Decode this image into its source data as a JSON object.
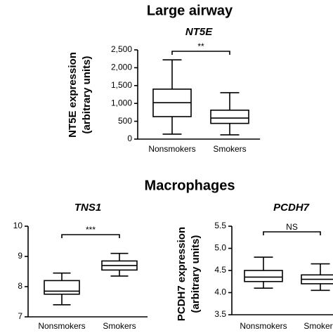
{
  "sections": [
    {
      "title": "Large airway"
    },
    {
      "title": "Macrophages"
    }
  ],
  "chart_data": [
    {
      "type": "box",
      "title": "NT5E",
      "ylabel": [
        "NT5E expression",
        "(arbitrary units)"
      ],
      "categories": [
        "Nonsmokers",
        "Smokers"
      ],
      "min": [
        140,
        120
      ],
      "q1": [
        630,
        440
      ],
      "median": [
        1020,
        590
      ],
      "q3": [
        1400,
        810
      ],
      "max": [
        2220,
        1300
      ],
      "ylim": [
        0,
        2500
      ],
      "yticks": [
        0,
        500,
        {
          "value": 1000,
          "label": "1,000"
        },
        {
          "value": 1500,
          "label": "1,500"
        },
        {
          "value": 2000,
          "label": "2,000"
        },
        {
          "value": 2500,
          "label": "2,500"
        }
      ],
      "annotation": "**"
    },
    {
      "type": "box",
      "title": "TNS1",
      "categories": [
        "Nonsmokers",
        "Smokers"
      ],
      "min": [
        7.4,
        8.35
      ],
      "q1": [
        7.75,
        8.55
      ],
      "median": [
        7.85,
        8.7
      ],
      "q3": [
        8.2,
        8.85
      ],
      "max": [
        8.45,
        9.1
      ],
      "ylim": [
        7,
        10
      ],
      "yticks": [
        7,
        8,
        9,
        10
      ],
      "annotation": "***"
    },
    {
      "type": "box",
      "title": "PCDH7",
      "ylabel": [
        "PCDH7 expression",
        "(arbitrary units)"
      ],
      "categories": [
        "Nonsmokers",
        "Smokers"
      ],
      "min": [
        4.1,
        4.05
      ],
      "q1": [
        4.25,
        4.2
      ],
      "median": [
        4.35,
        4.3
      ],
      "q3": [
        4.5,
        4.4
      ],
      "max": [
        4.8,
        4.65
      ],
      "ylim": [
        3.5,
        5.5
      ],
      "yticks": [
        3.5,
        {
          "value": 4,
          "label": "4.0"
        },
        4.5,
        {
          "value": 5,
          "label": "5.0"
        },
        5.5
      ],
      "annotation": "NS"
    }
  ]
}
